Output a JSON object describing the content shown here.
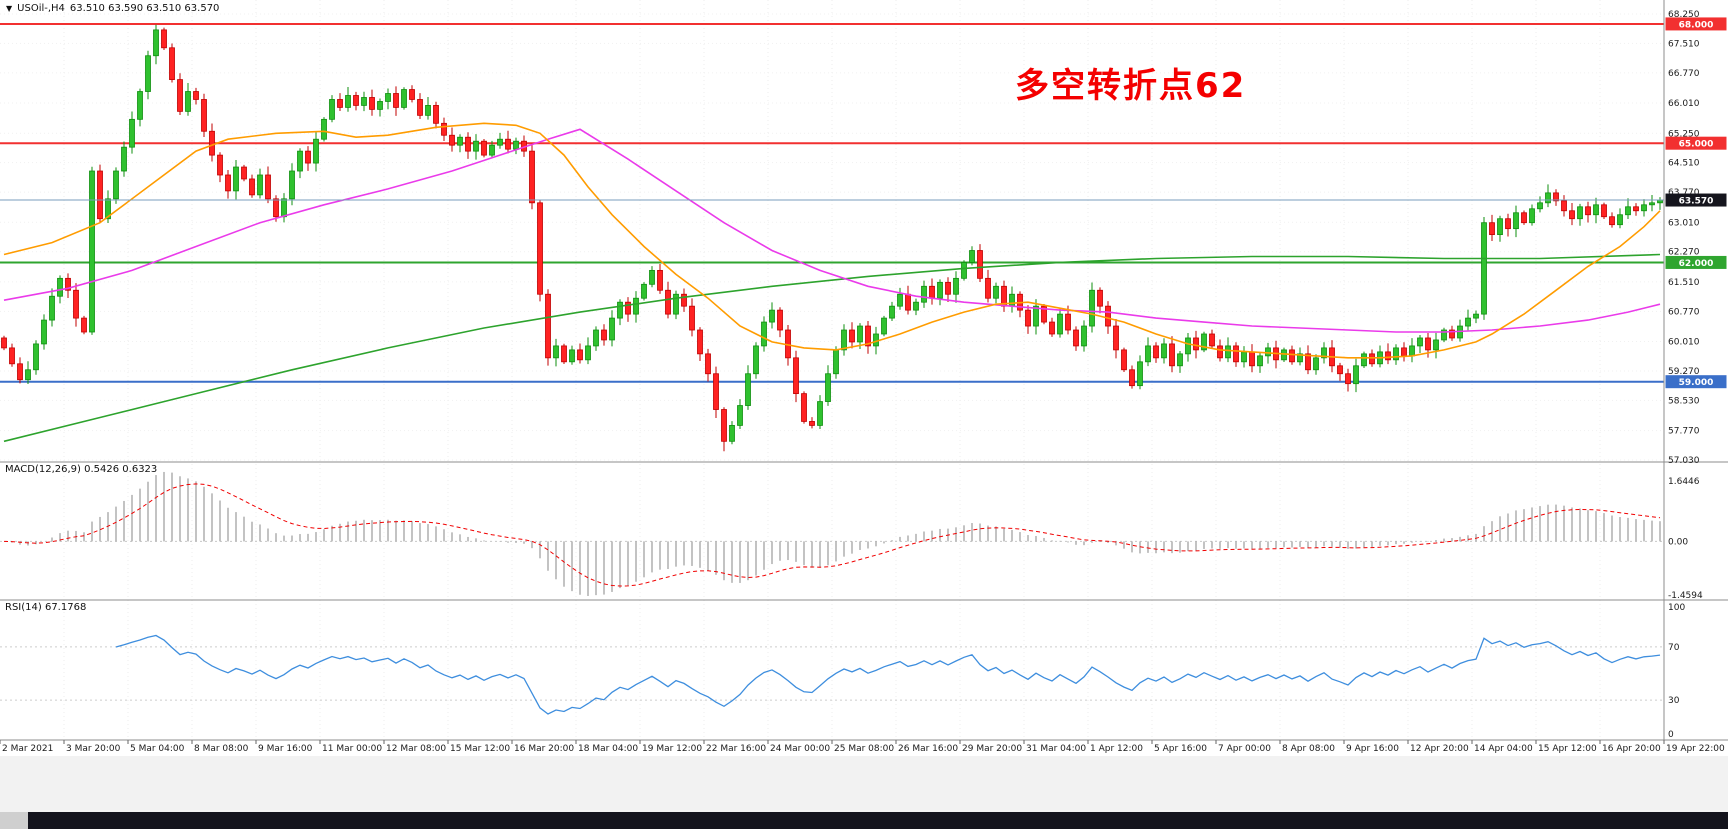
{
  "header": {
    "symbol_label": "USOil-,H4",
    "quote": "63.510 63.590 63.510 63.570"
  },
  "annotation": {
    "text": "多空转折点62",
    "color": "#f40000"
  },
  "colors": {
    "candle_up_fill": "#2fc12f",
    "candle_up_stroke": "#0f8f0f",
    "candle_down_fill": "#ff2222",
    "candle_down_stroke": "#c00000",
    "ma_fast": "#ff9c00",
    "ma_mid": "#ea3bea",
    "ma_slow": "#2da32d",
    "macd_hist": "#9b9b9b",
    "macd_signal": "#f00000",
    "rsi_line": "#3e8ede",
    "current_badge": "#15151d"
  },
  "chart_data": {
    "type": "candlestick",
    "symbol": "USOil",
    "timeframe": "H4",
    "x_labels": [
      "2 Mar 2021",
      "3 Mar 20:00",
      "5 Mar 04:00",
      "8 Mar 08:00",
      "9 Mar 16:00",
      "11 Mar 00:00",
      "12 Mar 08:00",
      "15 Mar 12:00",
      "16 Mar 20:00",
      "18 Mar 04:00",
      "19 Mar 12:00",
      "22 Mar 16:00",
      "24 Mar 00:00",
      "25 Mar 08:00",
      "26 Mar 16:00",
      "29 Mar 20:00",
      "31 Mar 04:00",
      "1 Apr 12:00",
      "5 Apr 16:00",
      "7 Apr 00:00",
      "8 Apr 08:00",
      "9 Apr 16:00",
      "12 Apr 20:00",
      "14 Apr 04:00",
      "15 Apr 12:00",
      "16 Apr 20:00",
      "19 Apr 22:00"
    ],
    "bars_per_label": 8,
    "open_first": 60.1,
    "wick": 0.14,
    "closes": [
      59.85,
      59.45,
      59.05,
      59.3,
      59.95,
      60.55,
      61.15,
      61.6,
      61.3,
      60.6,
      60.25,
      64.3,
      63.1,
      63.6,
      64.3,
      64.9,
      65.6,
      66.3,
      67.2,
      67.85,
      67.4,
      66.6,
      65.8,
      66.3,
      66.1,
      65.3,
      64.7,
      64.2,
      63.8,
      64.4,
      64.1,
      63.7,
      64.2,
      63.6,
      63.15,
      63.6,
      64.3,
      64.8,
      64.5,
      65.1,
      65.6,
      66.1,
      65.9,
      66.2,
      65.95,
      66.15,
      65.85,
      66.05,
      66.25,
      65.9,
      66.35,
      66.1,
      65.7,
      65.95,
      65.5,
      65.2,
      64.95,
      65.15,
      64.8,
      65.05,
      64.7,
      64.95,
      65.1,
      64.85,
      65.05,
      64.8,
      63.5,
      61.2,
      59.6,
      59.9,
      59.5,
      59.8,
      59.55,
      59.9,
      60.3,
      60.05,
      60.6,
      61.0,
      60.7,
      61.1,
      61.45,
      61.8,
      61.3,
      60.7,
      61.2,
      60.9,
      60.3,
      59.7,
      59.2,
      58.3,
      57.5,
      57.9,
      58.4,
      59.2,
      59.9,
      60.5,
      60.8,
      60.3,
      59.6,
      58.7,
      58.0,
      57.9,
      58.5,
      59.2,
      59.8,
      60.3,
      60.0,
      60.4,
      59.9,
      60.2,
      60.6,
      60.9,
      61.2,
      60.8,
      61.0,
      61.4,
      61.1,
      61.5,
      61.2,
      61.6,
      62.0,
      62.3,
      61.6,
      61.1,
      61.4,
      60.9,
      61.2,
      60.8,
      60.4,
      60.9,
      60.5,
      60.2,
      60.7,
      60.3,
      59.9,
      60.4,
      61.3,
      60.9,
      60.4,
      59.8,
      59.3,
      58.9,
      59.5,
      59.9,
      59.6,
      59.95,
      59.4,
      59.7,
      60.1,
      59.8,
      60.2,
      59.9,
      59.6,
      59.9,
      59.5,
      59.75,
      59.4,
      59.65,
      59.85,
      59.55,
      59.8,
      59.5,
      59.7,
      59.3,
      59.6,
      59.85,
      59.4,
      59.2,
      58.95,
      59.4,
      59.7,
      59.45,
      59.75,
      59.55,
      59.85,
      59.65,
      59.9,
      60.1,
      59.8,
      60.05,
      60.3,
      60.1,
      60.4,
      60.6,
      60.7,
      63.0,
      62.7,
      63.1,
      62.85,
      63.25,
      63.0,
      63.35,
      63.5,
      63.75,
      63.55,
      63.3,
      63.1,
      63.4,
      63.2,
      63.45,
      63.15,
      62.95,
      63.2,
      63.4,
      63.3,
      63.45,
      63.5,
      63.57
    ],
    "overrides": {
      "19": {
        "high": 67.98
      },
      "90": {
        "low": 57.25
      }
    },
    "y_axis": {
      "min": 57.03,
      "max": 68.25,
      "labels": [
        "68.250",
        "67.510",
        "66.770",
        "66.010",
        "65.250",
        "64.510",
        "63.770",
        "63.010",
        "62.270",
        "61.510",
        "60.770",
        "60.010",
        "59.270",
        "58.530",
        "57.770",
        "57.030"
      ]
    },
    "hlines": [
      {
        "price": 68.0,
        "label": "68.000",
        "color": "#f23030"
      },
      {
        "price": 65.0,
        "label": "65.000",
        "color": "#f23030"
      },
      {
        "price": 62.0,
        "label": "62.000",
        "color": "#2fa52f"
      },
      {
        "price": 59.0,
        "label": "59.000",
        "color": "#3a6fc9"
      }
    ],
    "current_price": {
      "value": 63.57,
      "label": "63.570"
    },
    "ma_lines": [
      {
        "name": "ma-slow-green",
        "color": "#2da32d",
        "points": [
          [
            0,
            57.5
          ],
          [
            12,
            58.1
          ],
          [
            24,
            58.7
          ],
          [
            36,
            59.3
          ],
          [
            48,
            59.85
          ],
          [
            60,
            60.35
          ],
          [
            72,
            60.75
          ],
          [
            84,
            61.1
          ],
          [
            96,
            61.4
          ],
          [
            108,
            61.65
          ],
          [
            120,
            61.85
          ],
          [
            132,
            62.0
          ],
          [
            144,
            62.1
          ],
          [
            156,
            62.15
          ],
          [
            168,
            62.15
          ],
          [
            180,
            62.1
          ],
          [
            192,
            62.1
          ],
          [
            207,
            62.2
          ]
        ]
      },
      {
        "name": "ma-mid-magenta",
        "color": "#ea3bea",
        "points": [
          [
            0,
            61.05
          ],
          [
            8,
            61.35
          ],
          [
            16,
            61.8
          ],
          [
            24,
            62.4
          ],
          [
            32,
            63.0
          ],
          [
            40,
            63.45
          ],
          [
            48,
            63.85
          ],
          [
            56,
            64.3
          ],
          [
            62,
            64.7
          ],
          [
            68,
            65.1
          ],
          [
            72,
            65.35
          ],
          [
            78,
            64.6
          ],
          [
            84,
            63.8
          ],
          [
            90,
            63.0
          ],
          [
            96,
            62.3
          ],
          [
            102,
            61.8
          ],
          [
            108,
            61.4
          ],
          [
            114,
            61.15
          ],
          [
            120,
            61.0
          ],
          [
            126,
            60.9
          ],
          [
            132,
            60.8
          ],
          [
            138,
            60.75
          ],
          [
            144,
            60.6
          ],
          [
            150,
            60.5
          ],
          [
            156,
            60.4
          ],
          [
            162,
            60.35
          ],
          [
            168,
            60.3
          ],
          [
            174,
            60.25
          ],
          [
            180,
            60.25
          ],
          [
            186,
            60.3
          ],
          [
            192,
            60.4
          ],
          [
            198,
            60.55
          ],
          [
            203,
            60.75
          ],
          [
            207,
            60.95
          ]
        ]
      },
      {
        "name": "ma-fast-orange",
        "color": "#ff9c00",
        "points": [
          [
            0,
            62.2
          ],
          [
            6,
            62.5
          ],
          [
            12,
            63.0
          ],
          [
            18,
            63.9
          ],
          [
            24,
            64.8
          ],
          [
            28,
            65.1
          ],
          [
            34,
            65.25
          ],
          [
            40,
            65.3
          ],
          [
            44,
            65.15
          ],
          [
            48,
            65.2
          ],
          [
            54,
            65.4
          ],
          [
            60,
            65.5
          ],
          [
            64,
            65.45
          ],
          [
            67,
            65.25
          ],
          [
            70,
            64.7
          ],
          [
            73,
            63.9
          ],
          [
            76,
            63.2
          ],
          [
            80,
            62.4
          ],
          [
            84,
            61.7
          ],
          [
            88,
            61.1
          ],
          [
            92,
            60.4
          ],
          [
            96,
            60.0
          ],
          [
            100,
            59.85
          ],
          [
            104,
            59.8
          ],
          [
            108,
            59.95
          ],
          [
            112,
            60.2
          ],
          [
            116,
            60.5
          ],
          [
            120,
            60.75
          ],
          [
            124,
            60.95
          ],
          [
            128,
            61.0
          ],
          [
            132,
            60.85
          ],
          [
            136,
            60.7
          ],
          [
            140,
            60.5
          ],
          [
            144,
            60.2
          ],
          [
            148,
            59.95
          ],
          [
            152,
            59.8
          ],
          [
            156,
            59.75
          ],
          [
            160,
            59.7
          ],
          [
            164,
            59.65
          ],
          [
            168,
            59.6
          ],
          [
            172,
            59.6
          ],
          [
            176,
            59.65
          ],
          [
            180,
            59.8
          ],
          [
            184,
            60.0
          ],
          [
            186,
            60.2
          ],
          [
            190,
            60.7
          ],
          [
            194,
            61.3
          ],
          [
            198,
            61.9
          ],
          [
            202,
            62.4
          ],
          [
            205,
            62.9
          ],
          [
            207,
            63.3
          ]
        ]
      }
    ],
    "macd": {
      "label": "MACD(12,26,9) 0.5426 0.6323",
      "params": [
        12,
        26,
        9
      ],
      "main_value": 0.5426,
      "signal_value": 0.6323,
      "max": 1.6446,
      "min": -1.4594,
      "axis_labels": [
        "1.6446",
        "0.00",
        "-1.4594"
      ]
    },
    "rsi": {
      "label": "RSI(14) 67.1768",
      "period": 14,
      "value": 67.1768,
      "axis_labels": [
        "100",
        "70",
        "30",
        "0"
      ],
      "levels": [
        70,
        30
      ]
    }
  }
}
